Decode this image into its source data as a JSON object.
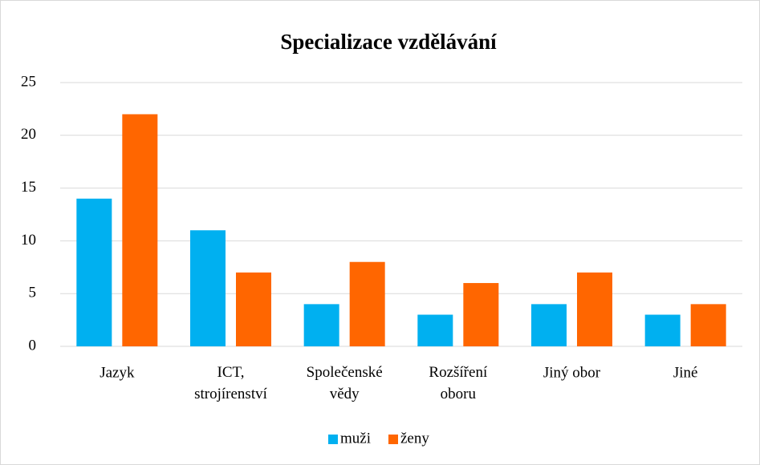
{
  "chart_data": {
    "type": "bar",
    "title": "Specializace vzdělávání",
    "categories": [
      "Jazyk",
      "ICT, strojírenství",
      "Společenské vědy",
      "Rozšíření oboru",
      "Jiný obor",
      "Jiné"
    ],
    "series": [
      {
        "name": "muži",
        "color": "#00b0f0",
        "values": [
          14,
          11,
          4,
          3,
          4,
          3
        ]
      },
      {
        "name": "ženy",
        "color": "#ff6600",
        "values": [
          22,
          7,
          8,
          6,
          7,
          4
        ]
      }
    ],
    "ylim": [
      0,
      25
    ],
    "yticks": [
      0,
      5,
      10,
      15,
      20,
      25
    ],
    "grid": true,
    "legend": "bottom"
  }
}
